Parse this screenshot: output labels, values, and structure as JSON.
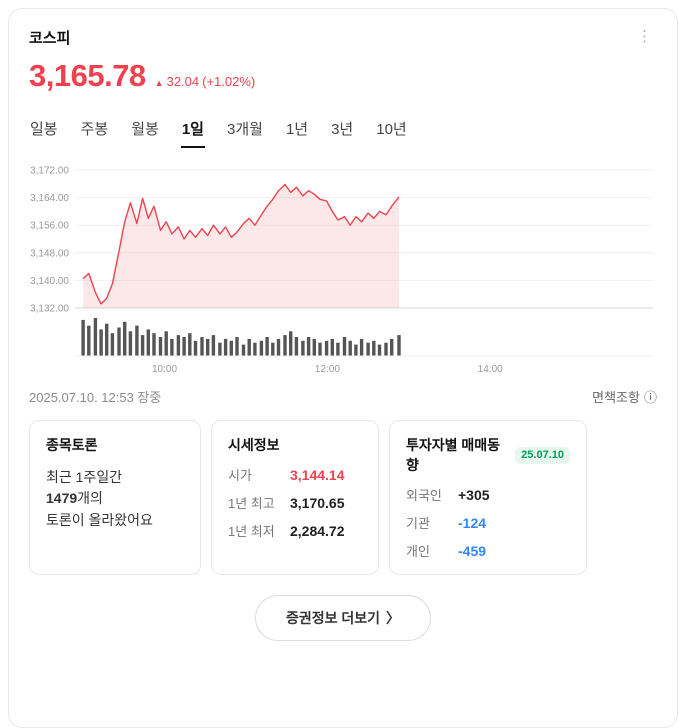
{
  "icons": {
    "more_menu": "⋮",
    "up_arrow": "▲",
    "info": "ⓘ",
    "chevron_right": "〉"
  },
  "colors": {
    "up": "#f0424e",
    "down": "#3485fa",
    "neutral": "#222222",
    "badge_text": "#00a05c",
    "badge_bg": "#e8f7ee"
  },
  "header": {
    "title": "코스피"
  },
  "price": {
    "value": "3,165.78",
    "change_value": "32.04",
    "change_percent": "(+1.02%)",
    "color": "up"
  },
  "tabs": {
    "selected_index": 3,
    "items": [
      {
        "label": "일봉",
        "name": "tab-daily-candle"
      },
      {
        "label": "주봉",
        "name": "tab-weekly-candle"
      },
      {
        "label": "월봉",
        "name": "tab-monthly-candle"
      },
      {
        "label": "1일",
        "name": "tab-1day"
      },
      {
        "label": "3개월",
        "name": "tab-3months"
      },
      {
        "label": "1년",
        "name": "tab-1year"
      },
      {
        "label": "3년",
        "name": "tab-3years"
      },
      {
        "label": "10년",
        "name": "tab-10years"
      }
    ]
  },
  "chart_data": {
    "type": "area",
    "x_unit": "hour-of-day",
    "x_domain": [
      8.9,
      16.0
    ],
    "x_ticks": [
      {
        "value": 10,
        "label": "10:00"
      },
      {
        "value": 12,
        "label": "12:00"
      },
      {
        "value": 14,
        "label": "14:00"
      }
    ],
    "y_axis": {
      "min": 3132,
      "max": 3172,
      "ticks": [
        "3,172.00",
        "3,164.00",
        "3,156.00",
        "3,148.00",
        "3,140.00",
        "3,132.00"
      ]
    },
    "colors": {
      "line": "#f0424e",
      "area_fill": "#f0424e",
      "volume": "#555555"
    },
    "area_fill_opacity": 0.12,
    "x": [
      9.0,
      9.07,
      9.15,
      9.22,
      9.29,
      9.36,
      9.44,
      9.51,
      9.58,
      9.66,
      9.73,
      9.8,
      9.87,
      9.95,
      10.02,
      10.09,
      10.17,
      10.24,
      10.31,
      10.38,
      10.46,
      10.53,
      10.6,
      10.68,
      10.75,
      10.82,
      10.89,
      10.97,
      11.04,
      11.11,
      11.19,
      11.26,
      11.33,
      11.4,
      11.48,
      11.55,
      11.62,
      11.7,
      11.77,
      11.84,
      11.91,
      11.99,
      12.06,
      12.13,
      12.21,
      12.28,
      12.35,
      12.42,
      12.5,
      12.57,
      12.64,
      12.72,
      12.79,
      12.88
    ],
    "prices": [
      3140.5,
      3142.0,
      3136.5,
      3133.2,
      3134.8,
      3139.0,
      3148.5,
      3157.0,
      3162.5,
      3156.5,
      3163.8,
      3158.0,
      3161.5,
      3154.5,
      3157.0,
      3153.5,
      3155.5,
      3152.0,
      3154.5,
      3152.5,
      3155.0,
      3153.0,
      3156.0,
      3153.5,
      3155.5,
      3152.5,
      3154.0,
      3156.5,
      3158.0,
      3156.0,
      3159.0,
      3161.5,
      3163.5,
      3166.0,
      3167.8,
      3165.5,
      3167.0,
      3164.5,
      3166.0,
      3165.0,
      3163.5,
      3163.0,
      3160.0,
      3157.5,
      3158.5,
      3156.0,
      3158.5,
      3157.0,
      3159.5,
      3158.0,
      3160.0,
      3159.0,
      3161.5,
      3164.2
    ],
    "volumes": [
      0.95,
      0.8,
      1.0,
      0.7,
      0.85,
      0.6,
      0.75,
      0.9,
      0.65,
      0.8,
      0.55,
      0.7,
      0.6,
      0.5,
      0.65,
      0.45,
      0.55,
      0.5,
      0.6,
      0.4,
      0.5,
      0.45,
      0.55,
      0.35,
      0.45,
      0.4,
      0.5,
      0.3,
      0.45,
      0.35,
      0.4,
      0.5,
      0.35,
      0.45,
      0.55,
      0.65,
      0.5,
      0.4,
      0.5,
      0.45,
      0.35,
      0.4,
      0.45,
      0.35,
      0.5,
      0.4,
      0.3,
      0.45,
      0.35,
      0.4,
      0.3,
      0.35,
      0.45,
      0.55
    ]
  },
  "status": {
    "timestamp": "2025.07.10. 12:53 장중",
    "disclaimer_label": "면책조항"
  },
  "cards": {
    "discussion": {
      "title": "종목토론",
      "line1": "최근 1주일간",
      "count": "1479",
      "count_suffix": "개의",
      "line3": "토론이 올라왔어요"
    },
    "quote": {
      "title": "시세정보",
      "rows": [
        {
          "label": "시가",
          "value": "3,144.14",
          "color": "up"
        },
        {
          "label": "1년 최고",
          "value": "3,170.65",
          "color": "neutral"
        },
        {
          "label": "1년 최저",
          "value": "2,284.72",
          "color": "neutral"
        }
      ]
    },
    "investors": {
      "title": "투자자별 매매동향",
      "badge": "25.07.10",
      "badge_text_color": "badge_text",
      "badge_bg_color": "badge_bg",
      "rows": [
        {
          "label": "외국인",
          "value": "+305",
          "color": "neutral"
        },
        {
          "label": "기관",
          "value": "-124",
          "color": "down"
        },
        {
          "label": "개인",
          "value": "-459",
          "color": "down"
        }
      ]
    }
  },
  "footer": {
    "more_label": "증권정보 더보기"
  }
}
